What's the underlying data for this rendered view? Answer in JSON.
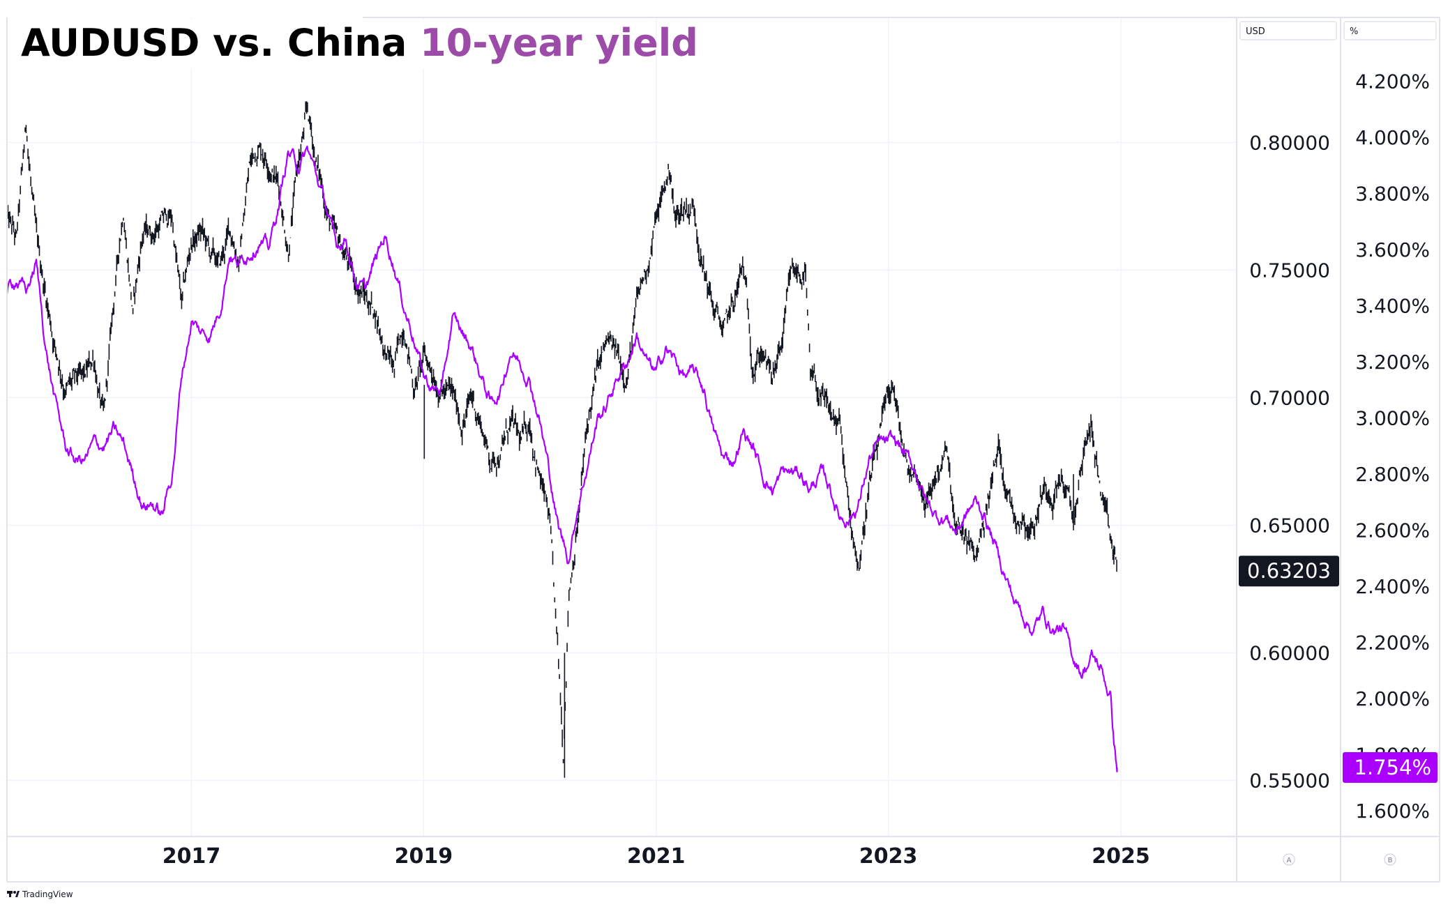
{
  "title": {
    "main": "AUDUSD vs. China",
    "highlight": "10-year yield",
    "main_color": "#000000",
    "highlight_color": "#9c4ba8"
  },
  "scales": {
    "left_label": "USD",
    "right_label": "%",
    "badge_a": "A",
    "badge_b": "B"
  },
  "footer": {
    "brand": "TradingView",
    "brand_icon": "tradingview-logo-icon"
  },
  "colors": {
    "audusd": "#131722",
    "yield": "#aa00ff",
    "grid": "#f0f3fa",
    "axis_text": "#131722",
    "badge_dark": "#131722",
    "badge_purple": "#aa00ff"
  },
  "chart_data": {
    "type": "line",
    "title": "AUDUSD vs. China 10-year yield",
    "x_axis": {
      "type": "date",
      "range": [
        "2015-06-01",
        "2025-12-31"
      ],
      "tick_labels": [
        "2017",
        "2019",
        "2021",
        "2023",
        "2025"
      ]
    },
    "y_axis_usd": {
      "label": "USD",
      "range": [
        0.528,
        0.849
      ],
      "ticks": [
        "0.55000",
        "0.60000",
        "0.65000",
        "0.70000",
        "0.75000",
        "0.80000"
      ]
    },
    "y_axis_pct": {
      "label": "%",
      "range": [
        1.508,
        4.428
      ],
      "ticks": [
        "1.600%",
        "1.800%",
        "2.000%",
        "2.200%",
        "2.400%",
        "2.600%",
        "2.800%",
        "3.000%",
        "3.200%",
        "3.400%",
        "3.600%",
        "3.800%",
        "4.000%",
        "4.200%"
      ]
    },
    "grid": true,
    "last_values": {
      "audusd": "0.63203",
      "yield": "1.754%"
    },
    "series": [
      {
        "key": "audusd",
        "axis": "usd",
        "style": "candles",
        "points": [
          [
            "2015-06-01",
            0.77
          ],
          [
            "2015-07-01",
            0.76
          ],
          [
            "2015-08-01",
            0.805
          ],
          [
            "2015-09-01",
            0.76
          ],
          [
            "2015-10-01",
            0.74
          ],
          [
            "2015-11-01",
            0.72
          ],
          [
            "2015-12-01",
            0.705
          ],
          [
            "2016-01-01",
            0.705
          ],
          [
            "2016-02-01",
            0.705
          ],
          [
            "2016-03-01",
            0.715
          ],
          [
            "2016-04-01",
            0.69
          ],
          [
            "2016-05-01",
            0.735
          ],
          [
            "2016-06-01",
            0.775
          ],
          [
            "2016-07-01",
            0.735
          ],
          [
            "2016-08-01",
            0.765
          ],
          [
            "2016-09-01",
            0.765
          ],
          [
            "2016-10-01",
            0.77
          ],
          [
            "2016-11-01",
            0.77
          ],
          [
            "2016-12-01",
            0.735
          ],
          [
            "2017-01-01",
            0.76
          ],
          [
            "2017-02-01",
            0.765
          ],
          [
            "2017-03-01",
            0.755
          ],
          [
            "2017-04-01",
            0.75
          ],
          [
            "2017-05-01",
            0.765
          ],
          [
            "2017-06-01",
            0.755
          ],
          [
            "2017-07-01",
            0.79
          ],
          [
            "2017-08-01",
            0.8
          ],
          [
            "2017-09-01",
            0.795
          ],
          [
            "2017-10-01",
            0.785
          ],
          [
            "2017-11-01",
            0.76
          ],
          [
            "2017-12-01",
            0.79
          ],
          [
            "2018-01-01",
            0.81
          ],
          [
            "2018-02-01",
            0.79
          ],
          [
            "2018-03-01",
            0.775
          ],
          [
            "2018-04-01",
            0.76
          ],
          [
            "2018-05-01",
            0.755
          ],
          [
            "2018-06-01",
            0.745
          ],
          [
            "2018-07-01",
            0.74
          ],
          [
            "2018-08-01",
            0.735
          ],
          [
            "2018-09-01",
            0.72
          ],
          [
            "2018-10-01",
            0.71
          ],
          [
            "2018-11-01",
            0.73
          ],
          [
            "2018-12-01",
            0.705
          ],
          [
            "2019-01-01",
            0.715
          ],
          [
            "2019-02-01",
            0.71
          ],
          [
            "2019-03-01",
            0.705
          ],
          [
            "2019-04-01",
            0.7
          ],
          [
            "2019-05-01",
            0.69
          ],
          [
            "2019-06-01",
            0.7
          ],
          [
            "2019-07-01",
            0.69
          ],
          [
            "2019-08-01",
            0.675
          ],
          [
            "2019-09-01",
            0.68
          ],
          [
            "2019-10-01",
            0.69
          ],
          [
            "2019-11-01",
            0.68
          ],
          [
            "2019-12-01",
            0.69
          ],
          [
            "2020-01-01",
            0.67
          ],
          [
            "2020-02-01",
            0.65
          ],
          [
            "2020-03-15",
            0.56
          ],
          [
            "2020-04-01",
            0.625
          ],
          [
            "2020-05-01",
            0.655
          ],
          [
            "2020-06-01",
            0.69
          ],
          [
            "2020-07-01",
            0.71
          ],
          [
            "2020-08-01",
            0.72
          ],
          [
            "2020-09-01",
            0.715
          ],
          [
            "2020-10-01",
            0.71
          ],
          [
            "2020-11-01",
            0.735
          ],
          [
            "2020-12-01",
            0.75
          ],
          [
            "2021-01-01",
            0.77
          ],
          [
            "2021-02-15",
            0.79
          ],
          [
            "2021-03-01",
            0.77
          ],
          [
            "2021-04-01",
            0.775
          ],
          [
            "2021-05-01",
            0.775
          ],
          [
            "2021-06-01",
            0.75
          ],
          [
            "2021-07-01",
            0.735
          ],
          [
            "2021-08-01",
            0.725
          ],
          [
            "2021-09-01",
            0.735
          ],
          [
            "2021-10-01",
            0.75
          ],
          [
            "2021-11-01",
            0.715
          ],
          [
            "2021-12-01",
            0.72
          ],
          [
            "2022-01-01",
            0.705
          ],
          [
            "2022-02-01",
            0.72
          ],
          [
            "2022-03-01",
            0.745
          ],
          [
            "2022-04-15",
            0.75
          ],
          [
            "2022-05-01",
            0.705
          ],
          [
            "2022-06-01",
            0.7
          ],
          [
            "2022-07-01",
            0.69
          ],
          [
            "2022-08-01",
            0.69
          ],
          [
            "2022-09-01",
            0.65
          ],
          [
            "2022-10-01",
            0.635
          ],
          [
            "2022-11-01",
            0.665
          ],
          [
            "2022-12-01",
            0.68
          ],
          [
            "2023-01-15",
            0.705
          ],
          [
            "2023-02-01",
            0.69
          ],
          [
            "2023-03-01",
            0.67
          ],
          [
            "2023-04-01",
            0.67
          ],
          [
            "2023-05-01",
            0.66
          ],
          [
            "2023-06-01",
            0.67
          ],
          [
            "2023-07-01",
            0.68
          ],
          [
            "2023-08-01",
            0.645
          ],
          [
            "2023-09-01",
            0.645
          ],
          [
            "2023-10-01",
            0.635
          ],
          [
            "2023-11-01",
            0.655
          ],
          [
            "2023-12-15",
            0.68
          ],
          [
            "2024-01-01",
            0.67
          ],
          [
            "2024-02-01",
            0.655
          ],
          [
            "2024-03-01",
            0.655
          ],
          [
            "2024-04-01",
            0.65
          ],
          [
            "2024-05-01",
            0.665
          ],
          [
            "2024-06-01",
            0.665
          ],
          [
            "2024-07-01",
            0.67
          ],
          [
            "2024-08-05",
            0.65
          ],
          [
            "2024-09-01",
            0.675
          ],
          [
            "2024-10-01",
            0.69
          ],
          [
            "2024-11-01",
            0.66
          ],
          [
            "2024-12-01",
            0.64
          ],
          [
            "2024-12-20",
            0.632
          ]
        ]
      },
      {
        "key": "yield",
        "axis": "pct",
        "style": "line",
        "points": [
          [
            "2015-06-01",
            3.45
          ],
          [
            "2015-07-01",
            3.5
          ],
          [
            "2015-08-01",
            3.45
          ],
          [
            "2015-09-01",
            3.55
          ],
          [
            "2015-10-01",
            3.25
          ],
          [
            "2015-11-01",
            3.05
          ],
          [
            "2015-12-01",
            2.9
          ],
          [
            "2016-01-01",
            2.85
          ],
          [
            "2016-02-01",
            2.85
          ],
          [
            "2016-03-01",
            2.9
          ],
          [
            "2016-04-01",
            2.9
          ],
          [
            "2016-05-01",
            2.95
          ],
          [
            "2016-06-01",
            2.9
          ],
          [
            "2016-07-01",
            2.8
          ],
          [
            "2016-08-01",
            2.7
          ],
          [
            "2016-09-01",
            2.7
          ],
          [
            "2016-10-01",
            2.65
          ],
          [
            "2016-11-01",
            2.8
          ],
          [
            "2016-12-01",
            3.15
          ],
          [
            "2017-01-01",
            3.35
          ],
          [
            "2017-02-01",
            3.3
          ],
          [
            "2017-03-01",
            3.3
          ],
          [
            "2017-04-01",
            3.4
          ],
          [
            "2017-05-01",
            3.6
          ],
          [
            "2017-06-01",
            3.55
          ],
          [
            "2017-07-01",
            3.6
          ],
          [
            "2017-08-01",
            3.65
          ],
          [
            "2017-09-01",
            3.6
          ],
          [
            "2017-10-01",
            3.75
          ],
          [
            "2017-11-01",
            3.95
          ],
          [
            "2017-12-01",
            3.9
          ],
          [
            "2018-01-01",
            3.95
          ],
          [
            "2018-02-01",
            3.85
          ],
          [
            "2018-03-01",
            3.75
          ],
          [
            "2018-04-01",
            3.6
          ],
          [
            "2018-05-01",
            3.65
          ],
          [
            "2018-06-01",
            3.5
          ],
          [
            "2018-07-01",
            3.45
          ],
          [
            "2018-08-01",
            3.55
          ],
          [
            "2018-09-01",
            3.65
          ],
          [
            "2018-10-01",
            3.55
          ],
          [
            "2018-11-01",
            3.4
          ],
          [
            "2018-12-01",
            3.3
          ],
          [
            "2019-01-01",
            3.15
          ],
          [
            "2019-02-01",
            3.1
          ],
          [
            "2019-03-01",
            3.1
          ],
          [
            "2019-04-01",
            3.35
          ],
          [
            "2019-05-01",
            3.3
          ],
          [
            "2019-06-01",
            3.25
          ],
          [
            "2019-07-01",
            3.15
          ],
          [
            "2019-08-01",
            3.05
          ],
          [
            "2019-09-01",
            3.1
          ],
          [
            "2019-10-01",
            3.25
          ],
          [
            "2019-11-01",
            3.2
          ],
          [
            "2019-12-01",
            3.15
          ],
          [
            "2020-01-01",
            3.0
          ],
          [
            "2020-02-01",
            2.8
          ],
          [
            "2020-03-01",
            2.6
          ],
          [
            "2020-04-01",
            2.5
          ],
          [
            "2020-05-01",
            2.7
          ],
          [
            "2020-06-01",
            2.85
          ],
          [
            "2020-07-01",
            3.0
          ],
          [
            "2020-08-01",
            3.05
          ],
          [
            "2020-09-01",
            3.15
          ],
          [
            "2020-10-01",
            3.2
          ],
          [
            "2020-11-01",
            3.3
          ],
          [
            "2020-12-01",
            3.2
          ],
          [
            "2021-01-01",
            3.15
          ],
          [
            "2021-02-01",
            3.25
          ],
          [
            "2021-03-01",
            3.2
          ],
          [
            "2021-04-01",
            3.15
          ],
          [
            "2021-05-01",
            3.15
          ],
          [
            "2021-06-01",
            3.1
          ],
          [
            "2021-07-01",
            2.95
          ],
          [
            "2021-08-01",
            2.85
          ],
          [
            "2021-09-01",
            2.85
          ],
          [
            "2021-10-01",
            2.95
          ],
          [
            "2021-11-01",
            2.9
          ],
          [
            "2021-12-01",
            2.8
          ],
          [
            "2022-01-01",
            2.75
          ],
          [
            "2022-02-01",
            2.8
          ],
          [
            "2022-03-01",
            2.8
          ],
          [
            "2022-04-01",
            2.8
          ],
          [
            "2022-05-01",
            2.75
          ],
          [
            "2022-06-01",
            2.8
          ],
          [
            "2022-07-01",
            2.75
          ],
          [
            "2022-08-01",
            2.65
          ],
          [
            "2022-09-01",
            2.65
          ],
          [
            "2022-10-01",
            2.7
          ],
          [
            "2022-11-01",
            2.85
          ],
          [
            "2022-12-01",
            2.9
          ],
          [
            "2023-01-01",
            2.9
          ],
          [
            "2023-02-01",
            2.9
          ],
          [
            "2023-03-01",
            2.85
          ],
          [
            "2023-04-01",
            2.8
          ],
          [
            "2023-05-01",
            2.7
          ],
          [
            "2023-06-01",
            2.65
          ],
          [
            "2023-07-01",
            2.65
          ],
          [
            "2023-08-01",
            2.6
          ],
          [
            "2023-09-01",
            2.65
          ],
          [
            "2023-10-01",
            2.7
          ],
          [
            "2023-11-01",
            2.65
          ],
          [
            "2023-12-01",
            2.55
          ],
          [
            "2024-01-01",
            2.45
          ],
          [
            "2024-02-01",
            2.35
          ],
          [
            "2024-03-01",
            2.3
          ],
          [
            "2024-04-01",
            2.25
          ],
          [
            "2024-05-01",
            2.3
          ],
          [
            "2024-06-01",
            2.25
          ],
          [
            "2024-07-01",
            2.25
          ],
          [
            "2024-08-01",
            2.15
          ],
          [
            "2024-09-01",
            2.1
          ],
          [
            "2024-10-01",
            2.15
          ],
          [
            "2024-11-01",
            2.1
          ],
          [
            "2024-12-01",
            2.0
          ],
          [
            "2024-12-10",
            1.85
          ],
          [
            "2024-12-20",
            1.754
          ]
        ]
      }
    ]
  }
}
